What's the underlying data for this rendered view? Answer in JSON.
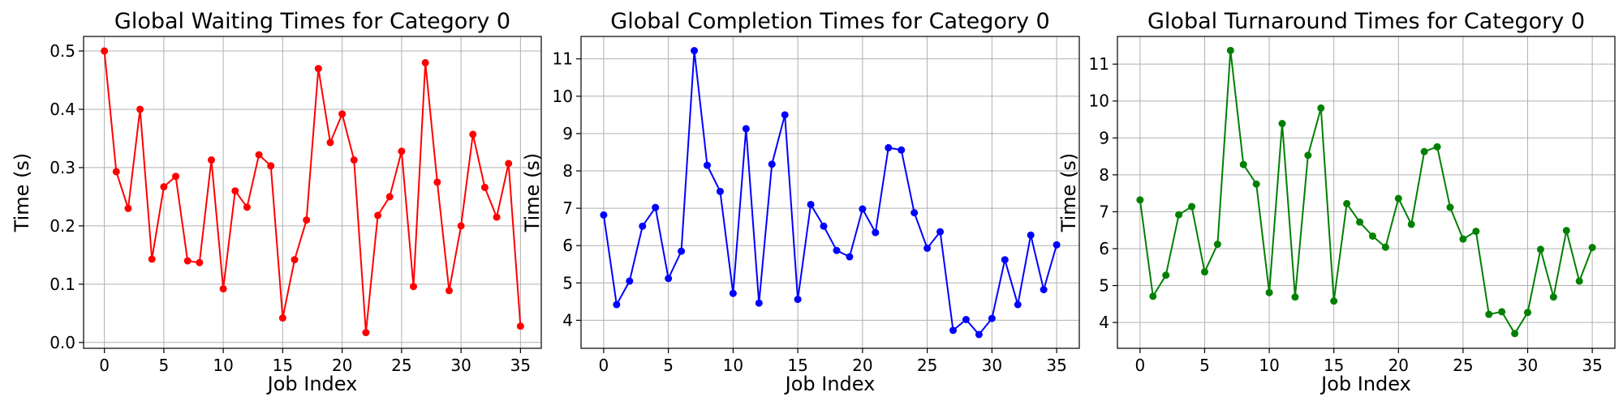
{
  "chart_data": [
    {
      "type": "line",
      "title": "Global Waiting Times for Category 0",
      "xlabel": "Job Index",
      "ylabel": "Time (s)",
      "xlim": [
        -1.75,
        36.75
      ],
      "ylim": [
        -0.01,
        0.525
      ],
      "xticks": [
        0,
        5,
        10,
        15,
        20,
        25,
        30,
        35
      ],
      "xtick_labels": [
        "0",
        "5",
        "10",
        "15",
        "20",
        "25",
        "30",
        "35"
      ],
      "yticks": [
        0.0,
        0.1,
        0.2,
        0.3,
        0.4,
        0.5
      ],
      "ytick_labels": [
        "0.0",
        "0.1",
        "0.2",
        "0.3",
        "0.4",
        "0.5"
      ],
      "grid": true,
      "color": "#ff0000",
      "marker": "circle",
      "x": [
        0,
        1,
        2,
        3,
        4,
        5,
        6,
        7,
        8,
        9,
        10,
        11,
        12,
        13,
        14,
        15,
        16,
        17,
        18,
        19,
        20,
        21,
        22,
        23,
        24,
        25,
        26,
        27,
        28,
        29,
        30,
        31,
        32,
        33,
        34,
        35
      ],
      "values": [
        0.5,
        0.293,
        0.23,
        0.4,
        0.143,
        0.267,
        0.285,
        0.14,
        0.137,
        0.313,
        0.092,
        0.26,
        0.232,
        0.322,
        0.303,
        0.042,
        0.142,
        0.21,
        0.47,
        0.343,
        0.392,
        0.313,
        0.017,
        0.218,
        0.25,
        0.328,
        0.096,
        0.48,
        0.275,
        0.089,
        0.2,
        0.357,
        0.266,
        0.215,
        0.307,
        0.028
      ]
    },
    {
      "type": "line",
      "title": "Global Completion Times for Category 0",
      "xlabel": "Job Index",
      "ylabel": "Time (s)",
      "xlim": [
        -1.75,
        36.75
      ],
      "ylim": [
        3.25,
        11.6
      ],
      "xticks": [
        0,
        5,
        10,
        15,
        20,
        25,
        30,
        35
      ],
      "xtick_labels": [
        "0",
        "5",
        "10",
        "15",
        "20",
        "25",
        "30",
        "35"
      ],
      "yticks": [
        4,
        5,
        6,
        7,
        8,
        9,
        10,
        11
      ],
      "ytick_labels": [
        "4",
        "5",
        "6",
        "7",
        "8",
        "9",
        "10",
        "11"
      ],
      "grid": true,
      "color": "#0000ff",
      "marker": "circle",
      "x": [
        0,
        1,
        2,
        3,
        4,
        5,
        6,
        7,
        8,
        9,
        10,
        11,
        12,
        13,
        14,
        15,
        16,
        17,
        18,
        19,
        20,
        21,
        22,
        23,
        24,
        25,
        26,
        27,
        28,
        29,
        30,
        31,
        32,
        33,
        34,
        35
      ],
      "values": [
        6.82,
        4.42,
        5.05,
        6.52,
        7.02,
        5.12,
        5.85,
        11.22,
        8.15,
        7.45,
        4.72,
        9.13,
        4.46,
        8.18,
        9.5,
        4.56,
        7.1,
        6.52,
        5.87,
        5.7,
        6.98,
        6.35,
        8.62,
        8.56,
        6.88,
        5.93,
        6.37,
        3.73,
        4.02,
        3.62,
        4.05,
        5.62,
        4.42,
        6.28,
        4.82,
        6.02
      ]
    },
    {
      "type": "line",
      "title": "Global Turnaround Times for Category 0",
      "xlabel": "Job Index",
      "ylabel": "Time (s)",
      "xlim": [
        -1.75,
        36.75
      ],
      "ylim": [
        3.3,
        11.75
      ],
      "xticks": [
        0,
        5,
        10,
        15,
        20,
        25,
        30,
        35
      ],
      "xtick_labels": [
        "0",
        "5",
        "10",
        "15",
        "20",
        "25",
        "30",
        "35"
      ],
      "yticks": [
        4,
        5,
        6,
        7,
        8,
        9,
        10,
        11
      ],
      "ytick_labels": [
        "4",
        "5",
        "6",
        "7",
        "8",
        "9",
        "10",
        "11"
      ],
      "grid": true,
      "color": "#008000",
      "marker": "circle",
      "x": [
        0,
        1,
        2,
        3,
        4,
        5,
        6,
        7,
        8,
        9,
        10,
        11,
        12,
        13,
        14,
        15,
        16,
        17,
        18,
        19,
        20,
        21,
        22,
        23,
        24,
        25,
        26,
        27,
        28,
        29,
        30,
        31,
        32,
        33,
        34,
        35
      ],
      "values": [
        7.32,
        4.71,
        5.28,
        6.92,
        7.14,
        5.37,
        6.12,
        11.37,
        8.28,
        7.75,
        4.81,
        9.39,
        4.69,
        8.53,
        9.81,
        4.58,
        7.22,
        6.72,
        6.34,
        6.04,
        7.36,
        6.66,
        8.63,
        8.76,
        7.12,
        6.26,
        6.47,
        4.22,
        4.29,
        3.7,
        4.27,
        5.98,
        4.69,
        6.49,
        5.12,
        6.03
      ]
    }
  ]
}
